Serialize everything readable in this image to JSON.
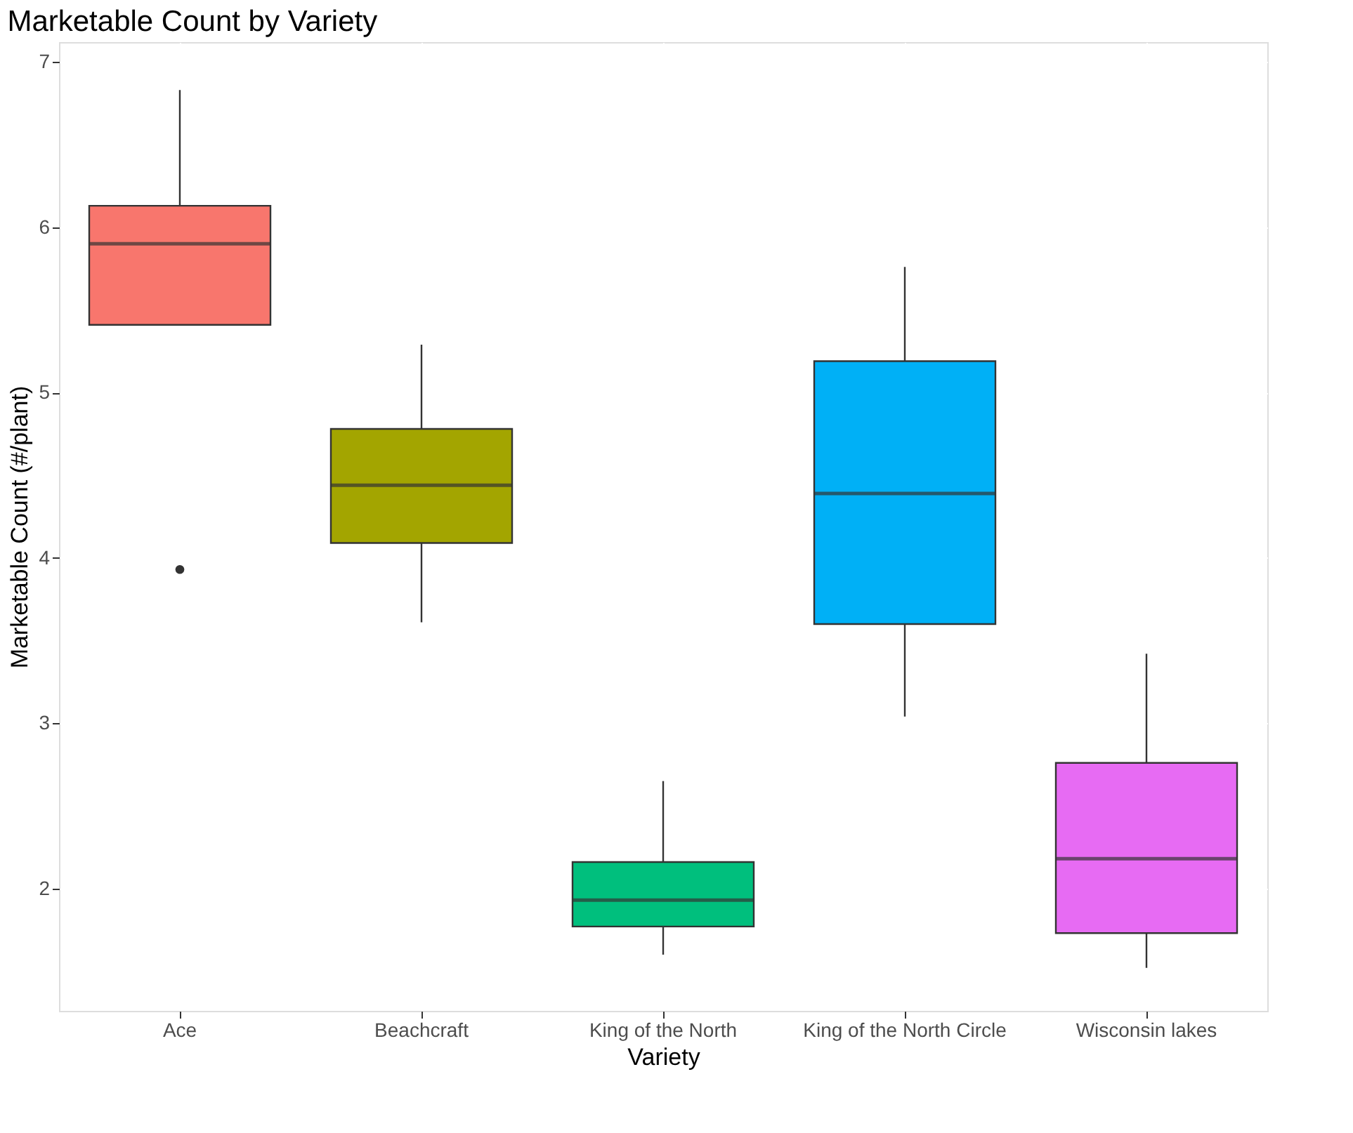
{
  "chart_data": {
    "type": "box",
    "title": "Marketable Count by Variety",
    "xlabel": "Variety",
    "ylabel": "Marketable Count (#/plant)",
    "categories": [
      "Ace",
      "Beachcraft",
      "King of the North",
      "King of the North Circle",
      "Wisconsin lakes"
    ],
    "colors": [
      "#f8766d",
      "#a3a500",
      "#00bf7d",
      "#00b0f6",
      "#e76bf3"
    ],
    "boxes": [
      {
        "low": 5.41,
        "q1": 5.41,
        "median": 5.9,
        "q3": 6.13,
        "high": 6.83,
        "outliers": [
          3.93
        ]
      },
      {
        "low": 3.61,
        "q1": 4.09,
        "median": 4.44,
        "q3": 4.78,
        "high": 5.29
      },
      {
        "low": 1.6,
        "q1": 1.77,
        "median": 1.93,
        "q3": 2.16,
        "high": 2.65
      },
      {
        "low": 3.04,
        "q1": 3.6,
        "median": 4.39,
        "q3": 5.19,
        "high": 5.76
      },
      {
        "low": 1.52,
        "q1": 1.73,
        "median": 2.18,
        "q3": 2.76,
        "high": 3.42
      }
    ],
    "ylim": [
      1.26,
      7.12
    ],
    "yticks": [
      2,
      3,
      4,
      5,
      6,
      7
    ],
    "grid": true
  }
}
